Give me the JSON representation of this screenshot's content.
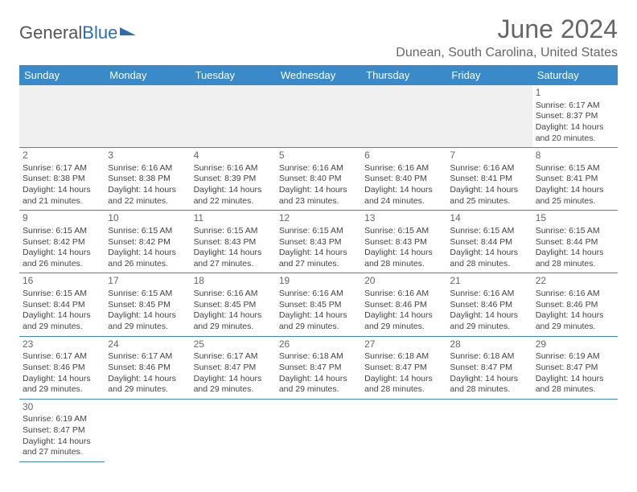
{
  "logo": {
    "part1": "General",
    "part2": "Blue"
  },
  "title": "June 2024",
  "location": "Dunean, South Carolina, United States",
  "colors": {
    "header_bg": "#3a8ac9",
    "header_text": "#ffffff",
    "title_color": "#666666",
    "border_color": "#3a8ac9",
    "blank_bg": "#f0f0f0"
  },
  "weekdays": [
    "Sunday",
    "Monday",
    "Tuesday",
    "Wednesday",
    "Thursday",
    "Friday",
    "Saturday"
  ],
  "weeks": [
    [
      null,
      null,
      null,
      null,
      null,
      null,
      {
        "n": "1",
        "sr": "Sunrise: 6:17 AM",
        "ss": "Sunset: 8:37 PM",
        "d1": "Daylight: 14 hours",
        "d2": "and 20 minutes."
      }
    ],
    [
      {
        "n": "2",
        "sr": "Sunrise: 6:17 AM",
        "ss": "Sunset: 8:38 PM",
        "d1": "Daylight: 14 hours",
        "d2": "and 21 minutes."
      },
      {
        "n": "3",
        "sr": "Sunrise: 6:16 AM",
        "ss": "Sunset: 8:38 PM",
        "d1": "Daylight: 14 hours",
        "d2": "and 22 minutes."
      },
      {
        "n": "4",
        "sr": "Sunrise: 6:16 AM",
        "ss": "Sunset: 8:39 PM",
        "d1": "Daylight: 14 hours",
        "d2": "and 22 minutes."
      },
      {
        "n": "5",
        "sr": "Sunrise: 6:16 AM",
        "ss": "Sunset: 8:40 PM",
        "d1": "Daylight: 14 hours",
        "d2": "and 23 minutes."
      },
      {
        "n": "6",
        "sr": "Sunrise: 6:16 AM",
        "ss": "Sunset: 8:40 PM",
        "d1": "Daylight: 14 hours",
        "d2": "and 24 minutes."
      },
      {
        "n": "7",
        "sr": "Sunrise: 6:16 AM",
        "ss": "Sunset: 8:41 PM",
        "d1": "Daylight: 14 hours",
        "d2": "and 25 minutes."
      },
      {
        "n": "8",
        "sr": "Sunrise: 6:15 AM",
        "ss": "Sunset: 8:41 PM",
        "d1": "Daylight: 14 hours",
        "d2": "and 25 minutes."
      }
    ],
    [
      {
        "n": "9",
        "sr": "Sunrise: 6:15 AM",
        "ss": "Sunset: 8:42 PM",
        "d1": "Daylight: 14 hours",
        "d2": "and 26 minutes."
      },
      {
        "n": "10",
        "sr": "Sunrise: 6:15 AM",
        "ss": "Sunset: 8:42 PM",
        "d1": "Daylight: 14 hours",
        "d2": "and 26 minutes."
      },
      {
        "n": "11",
        "sr": "Sunrise: 6:15 AM",
        "ss": "Sunset: 8:43 PM",
        "d1": "Daylight: 14 hours",
        "d2": "and 27 minutes."
      },
      {
        "n": "12",
        "sr": "Sunrise: 6:15 AM",
        "ss": "Sunset: 8:43 PM",
        "d1": "Daylight: 14 hours",
        "d2": "and 27 minutes."
      },
      {
        "n": "13",
        "sr": "Sunrise: 6:15 AM",
        "ss": "Sunset: 8:43 PM",
        "d1": "Daylight: 14 hours",
        "d2": "and 28 minutes."
      },
      {
        "n": "14",
        "sr": "Sunrise: 6:15 AM",
        "ss": "Sunset: 8:44 PM",
        "d1": "Daylight: 14 hours",
        "d2": "and 28 minutes."
      },
      {
        "n": "15",
        "sr": "Sunrise: 6:15 AM",
        "ss": "Sunset: 8:44 PM",
        "d1": "Daylight: 14 hours",
        "d2": "and 28 minutes."
      }
    ],
    [
      {
        "n": "16",
        "sr": "Sunrise: 6:15 AM",
        "ss": "Sunset: 8:44 PM",
        "d1": "Daylight: 14 hours",
        "d2": "and 29 minutes."
      },
      {
        "n": "17",
        "sr": "Sunrise: 6:15 AM",
        "ss": "Sunset: 8:45 PM",
        "d1": "Daylight: 14 hours",
        "d2": "and 29 minutes."
      },
      {
        "n": "18",
        "sr": "Sunrise: 6:16 AM",
        "ss": "Sunset: 8:45 PM",
        "d1": "Daylight: 14 hours",
        "d2": "and 29 minutes."
      },
      {
        "n": "19",
        "sr": "Sunrise: 6:16 AM",
        "ss": "Sunset: 8:45 PM",
        "d1": "Daylight: 14 hours",
        "d2": "and 29 minutes."
      },
      {
        "n": "20",
        "sr": "Sunrise: 6:16 AM",
        "ss": "Sunset: 8:46 PM",
        "d1": "Daylight: 14 hours",
        "d2": "and 29 minutes."
      },
      {
        "n": "21",
        "sr": "Sunrise: 6:16 AM",
        "ss": "Sunset: 8:46 PM",
        "d1": "Daylight: 14 hours",
        "d2": "and 29 minutes."
      },
      {
        "n": "22",
        "sr": "Sunrise: 6:16 AM",
        "ss": "Sunset: 8:46 PM",
        "d1": "Daylight: 14 hours",
        "d2": "and 29 minutes."
      }
    ],
    [
      {
        "n": "23",
        "sr": "Sunrise: 6:17 AM",
        "ss": "Sunset: 8:46 PM",
        "d1": "Daylight: 14 hours",
        "d2": "and 29 minutes."
      },
      {
        "n": "24",
        "sr": "Sunrise: 6:17 AM",
        "ss": "Sunset: 8:46 PM",
        "d1": "Daylight: 14 hours",
        "d2": "and 29 minutes."
      },
      {
        "n": "25",
        "sr": "Sunrise: 6:17 AM",
        "ss": "Sunset: 8:47 PM",
        "d1": "Daylight: 14 hours",
        "d2": "and 29 minutes."
      },
      {
        "n": "26",
        "sr": "Sunrise: 6:18 AM",
        "ss": "Sunset: 8:47 PM",
        "d1": "Daylight: 14 hours",
        "d2": "and 29 minutes."
      },
      {
        "n": "27",
        "sr": "Sunrise: 6:18 AM",
        "ss": "Sunset: 8:47 PM",
        "d1": "Daylight: 14 hours",
        "d2": "and 28 minutes."
      },
      {
        "n": "28",
        "sr": "Sunrise: 6:18 AM",
        "ss": "Sunset: 8:47 PM",
        "d1": "Daylight: 14 hours",
        "d2": "and 28 minutes."
      },
      {
        "n": "29",
        "sr": "Sunrise: 6:19 AM",
        "ss": "Sunset: 8:47 PM",
        "d1": "Daylight: 14 hours",
        "d2": "and 28 minutes."
      }
    ],
    [
      {
        "n": "30",
        "sr": "Sunrise: 6:19 AM",
        "ss": "Sunset: 8:47 PM",
        "d1": "Daylight: 14 hours",
        "d2": "and 27 minutes."
      },
      null,
      null,
      null,
      null,
      null,
      null
    ]
  ]
}
